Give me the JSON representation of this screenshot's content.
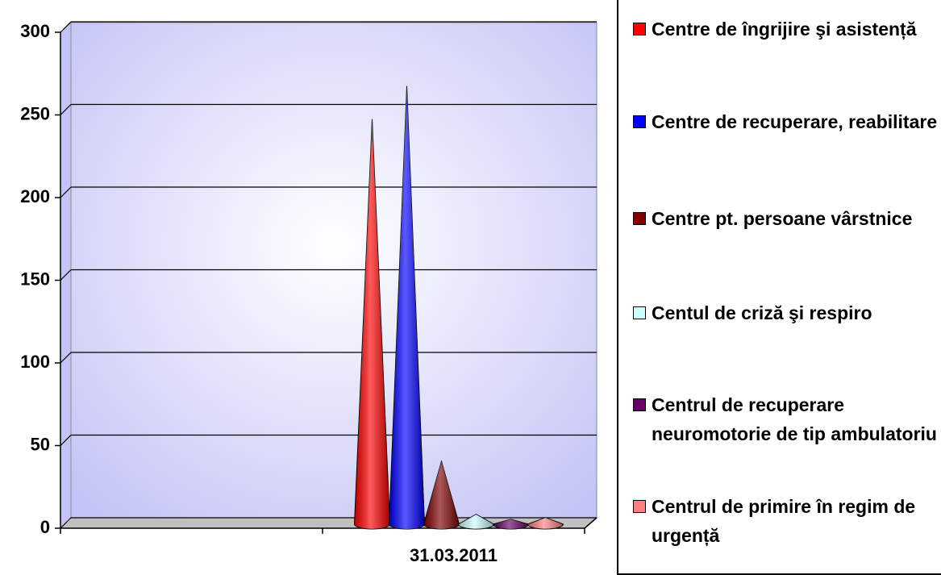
{
  "chart_data": {
    "type": "cone3d",
    "categories": [
      null,
      "31.03.2011"
    ],
    "series": [
      {
        "name": "Centre de îngrijire şi asistență",
        "color": "#ff0000",
        "values": [
          null,
          245
        ]
      },
      {
        "name": "Centre de recuperare, reabilitare",
        "color": "#0000ff",
        "values": [
          null,
          265
        ]
      },
      {
        "name": "Centre pt. persoane vârstnice",
        "color": "#800000",
        "values": [
          null,
          38
        ]
      },
      {
        "name": "Centul de criză şi respiro",
        "color": "#ccffff",
        "values": [
          null,
          6
        ]
      },
      {
        "name": "Centrul de recuperare neuromotorie de tip ambulatoriu",
        "color": "#660066",
        "values": [
          null,
          3
        ]
      },
      {
        "name": "Centrul de primire în regim de urgență",
        "color": "#ff8080",
        "values": [
          null,
          4
        ]
      }
    ],
    "ylim": [
      0,
      300
    ],
    "yticks": [
      0,
      50,
      100,
      150,
      200,
      250,
      300
    ],
    "grid": true,
    "legend": "right"
  }
}
